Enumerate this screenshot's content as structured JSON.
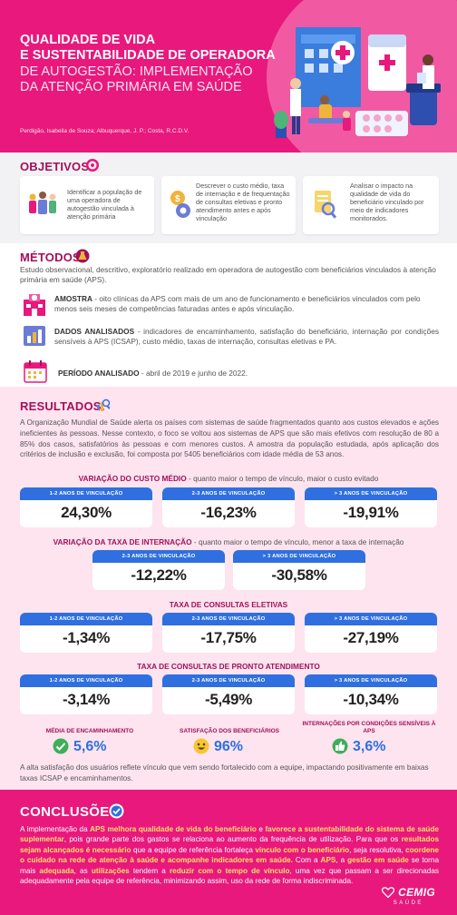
{
  "header": {
    "title_bold_1": "QUALIDADE DE VIDA",
    "title_bold_2": "E SUSTENTABILIDADE DE OPERADORA",
    "title_light_1": "DE AUTOGESTÃO: IMPLEMENTAÇÃO",
    "title_light_2": "DA ATENÇÃO PRIMÁRIA EM SAÚDE",
    "authors": "Perdigão, Isabella de Souza; Albuquerque, J. P.; Costa, R.C.D.V."
  },
  "objetivos": {
    "title": "OBJETIVOS:",
    "cards": [
      {
        "text": "Identificar a população de uma operadora de autogestão vinculada à atenção primária",
        "icon": "people-group-icon"
      },
      {
        "text": "Descrever o custo médio, taxa de internação e de frequentação de consultas eletivas e pronto atendimento antes e após vinculação",
        "icon": "money-gear-icon"
      },
      {
        "text": "Analisar o impacto na qualidade de vida do beneficiário vinculado por meio de indicadores monitorados.",
        "icon": "document-magnifier-icon"
      }
    ]
  },
  "metodos": {
    "title": "MÉTODOS:",
    "intro": "Estudo observacional, descritivo, exploratório realizado em operadora de autogestão com beneficiários vinculados à atenção primária em saúde (APS).",
    "amostra_label": "AMOSTRA",
    "amostra_text": " - oito clínicas da APS com mais de um ano de funcionamento e beneficiários vinculados com pelo menos seis meses de competências faturadas antes e após vinculação.",
    "dados_label": "DADOS ANALISADOS",
    "dados_text": " - indicadores de encaminhamento, satisfação do beneficiário, internação por condições sensíveis à APS (ICSAP), custo médio, taxas de internação, consultas eletivas e PA.",
    "periodo_label": "PERÍODO ANALISADO",
    "periodo_text": " - abril de 2019 e junho de 2022."
  },
  "resultados": {
    "title": "RESULTADOS:",
    "intro": "A Organização Mundial de Saúde alerta os países com sistemas de saúde fragmentados quanto aos custos elevados e ações ineficientes às pessoas. Nesse contexto, o foco se voltou aos sistemas de APS que são mais efetivos com resolução de 80 a 85% dos casos, satisfatórios às pessoas e com menores custos. A amostra da população estudada, após aplicação dos critérios de inclusão e exclusão, foi composta por 5405 beneficiários com idade média de 53 anos.",
    "custo": {
      "title": "VARIAÇÃO DO CUSTO MÉDIO",
      "note": " - quanto maior o tempo de vínculo, maior o custo evitado",
      "boxes": [
        {
          "label": "1-2 ANOS DE VINCULAÇÃO",
          "value": "24,30%"
        },
        {
          "label": "2-3 ANOS DE VINCULAÇÃO",
          "value": "-16,23%"
        },
        {
          "label": "> 3 ANOS DE VINCULAÇÃO",
          "value": "-19,91%"
        }
      ]
    },
    "internacao": {
      "title": "VARIAÇÃO DA TAXA DE INTERNAÇÃO",
      "note": " - quanto maior o tempo de vínculo, menor a taxa de internação",
      "boxes": [
        {
          "label": "2-3 ANOS DE VINCULAÇÃO",
          "value": "-12,22%"
        },
        {
          "label": "> 3 ANOS DE VINCULAÇÃO",
          "value": "-30,58%"
        }
      ]
    },
    "eletivas": {
      "title": "TAXA DE CONSULTAS ELETIVAS",
      "boxes": [
        {
          "label": "1-2 ANOS DE VINCULAÇÃO",
          "value": "-1,34%"
        },
        {
          "label": "2-3 ANOS DE VINCULAÇÃO",
          "value": "-17,75%"
        },
        {
          "label": "> 3 ANOS DE VINCULAÇÃO",
          "value": "-27,19%"
        }
      ]
    },
    "pronto": {
      "title": "TAXA DE CONSULTAS DE PRONTO ATENDIMENTO",
      "boxes": [
        {
          "label": "1-2 ANOS DE VINCULAÇÃO",
          "value": "-3,14%"
        },
        {
          "label": "2-3 ANOS DE VINCULAÇÃO",
          "value": "-5,49%"
        },
        {
          "label": "> 3 ANOS DE VINCULAÇÃO",
          "value": "-10,34%"
        }
      ]
    },
    "indicators": [
      {
        "label": "MÉDIA DE ENCAMINHAMENTO",
        "value": "5,6%",
        "icon": "check-circle-icon"
      },
      {
        "label": "SATISFAÇÃO DOS BENEFICIÁRIOS",
        "value": "96%",
        "icon": "smiley-icon"
      },
      {
        "label": "INTERNAÇÕES POR CONDIÇÕES SENSÍVEIS À APS",
        "value": "3,6%",
        "icon": "thumbs-up-icon"
      }
    ],
    "footer": "A alta satisfação dos usuários reflete vínculo que vem sendo fortalecido com a equipe, impactando positivamente em baixas taxas ICSAP e encaminhamentos."
  },
  "conclusoes": {
    "title": "CONCLUSÕES:",
    "p1": "A implementação da ",
    "h1": "APS melhora qualidade de vida do beneficiário",
    "p2": " e ",
    "h2": "favorece a sustentabilidade do sistema de saúde suplementar",
    "p3": ", pois grande parte dos gastos se relaciona ao aumento da frequência de utilização. Para que os ",
    "h3": "resultados sejam alcançados é necessário",
    "p4": " que a equipe de referência fortaleça ",
    "h4": "vínculo com o beneficiário",
    "p5": ", seja resolutiva, ",
    "h5": "coordene o cuidado na rede de atenção à saúde e acompanhe indicadores em saúde.",
    "p6": " Com a ",
    "h6": "APS",
    "p7": ", a ",
    "h7": "gestão em saúde",
    "p8": " se torna mais ",
    "h8": "adequada",
    "p9": ", as ",
    "h9": "utilizações",
    "p10": " tendem a ",
    "h10": "reduzir com o tempo de vínculo",
    "p11": ", uma vez que passam a ser direcionadas adequadamente pela equipe de referência, minimizando assim, uso da rede de forma indiscriminada."
  },
  "logo": {
    "brand": "CEMIG",
    "sub": "SAÚDE"
  },
  "colors": {
    "magenta": "#e8187c",
    "dark_magenta": "#a3105a",
    "blue": "#2f6fe0",
    "pink_bg": "#fde4ef"
  }
}
